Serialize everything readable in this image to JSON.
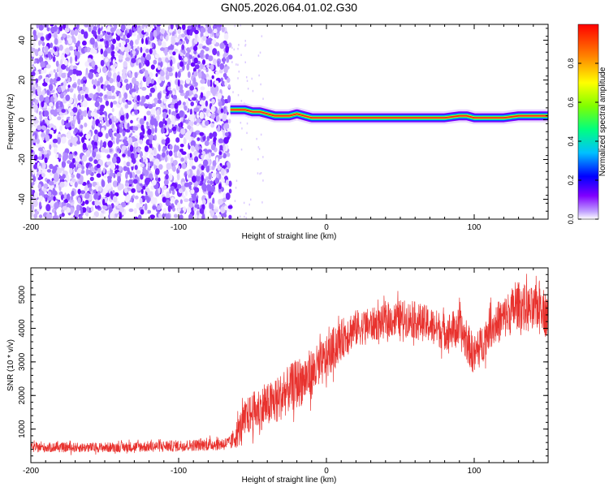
{
  "title": "GN05.2026.064.01.02.G30",
  "colors": {
    "snr_line": "#e8322e",
    "axis": "#000000",
    "noise_speckle": "#7a2bff",
    "colorbar_stops": [
      "#ffffff",
      "#8000ff",
      "#0000ff",
      "#00c0ff",
      "#00ff80",
      "#80ff00",
      "#ffff00",
      "#ff8000",
      "#ff0000"
    ]
  },
  "chart_data": [
    {
      "type": "heatmap",
      "name": "spectrogram",
      "xlabel": "Height of straight line (km)",
      "ylabel": "Frequency (Hz)",
      "xlim": [
        -200,
        150
      ],
      "ylim": [
        -50,
        48
      ],
      "x_ticks": [
        -200,
        -100,
        0,
        100
      ],
      "y_ticks": [
        -40,
        -20,
        0,
        20,
        40
      ],
      "noise_region_x": [
        -200,
        -65
      ],
      "ridge": {
        "x": [
          -65,
          -60,
          -55,
          -50,
          -45,
          -40,
          -35,
          -30,
          -25,
          -20,
          -15,
          -10,
          -5,
          0,
          10,
          20,
          30,
          40,
          50,
          60,
          70,
          80,
          90,
          95,
          100,
          110,
          120,
          130,
          140,
          150
        ],
        "freq": [
          5,
          5,
          5,
          4,
          4,
          3,
          2,
          2,
          2,
          3,
          2,
          1,
          1,
          1,
          1,
          1,
          1,
          1,
          1,
          1,
          1,
          1,
          2,
          2,
          1,
          1,
          1,
          2,
          2,
          2
        ]
      },
      "colorbar": {
        "label": "Normalized spectral amplitude",
        "range": [
          0.0,
          1.0
        ],
        "ticks": [
          0.0,
          0.2,
          0.4,
          0.6,
          0.8
        ],
        "tick_labels": [
          "0.0",
          "0.2",
          "0.4",
          "0.6",
          "0.8"
        ]
      }
    },
    {
      "type": "line",
      "name": "snr",
      "xlabel": "Height of straight line (km)",
      "ylabel": "SNR (10 * v/v)",
      "xlim": [
        -200,
        150
      ],
      "ylim": [
        0,
        5800
      ],
      "x_ticks": [
        -200,
        -100,
        0,
        100
      ],
      "y_ticks": [
        1000,
        2000,
        3000,
        4000,
        5000
      ],
      "series": [
        {
          "name": "SNR",
          "x": [
            -200,
            -180,
            -160,
            -140,
            -120,
            -100,
            -90,
            -80,
            -70,
            -65,
            -60,
            -55,
            -50,
            -45,
            -40,
            -35,
            -30,
            -25,
            -20,
            -15,
            -10,
            -5,
            0,
            5,
            10,
            15,
            20,
            30,
            40,
            50,
            60,
            70,
            80,
            90,
            95,
            100,
            105,
            110,
            120,
            125,
            130,
            135,
            140,
            145,
            150
          ],
          "mean": [
            450,
            450,
            450,
            460,
            480,
            500,
            520,
            540,
            560,
            580,
            900,
            1300,
            1500,
            1600,
            1700,
            1800,
            2000,
            2200,
            2350,
            2500,
            2650,
            2850,
            3100,
            3400,
            3650,
            3900,
            4000,
            4100,
            4200,
            4300,
            4250,
            4100,
            3900,
            4000,
            3600,
            3200,
            3500,
            4000,
            4300,
            4500,
            4700,
            4600,
            4500,
            4800,
            4200
          ],
          "amp": [
            140,
            140,
            140,
            150,
            160,
            170,
            170,
            180,
            190,
            200,
            450,
            550,
            600,
            650,
            650,
            700,
            700,
            700,
            750,
            750,
            750,
            700,
            650,
            650,
            600,
            600,
            550,
            500,
            500,
            550,
            550,
            550,
            550,
            600,
            600,
            600,
            600,
            600,
            650,
            700,
            700,
            700,
            700,
            700,
            650
          ]
        }
      ]
    }
  ]
}
